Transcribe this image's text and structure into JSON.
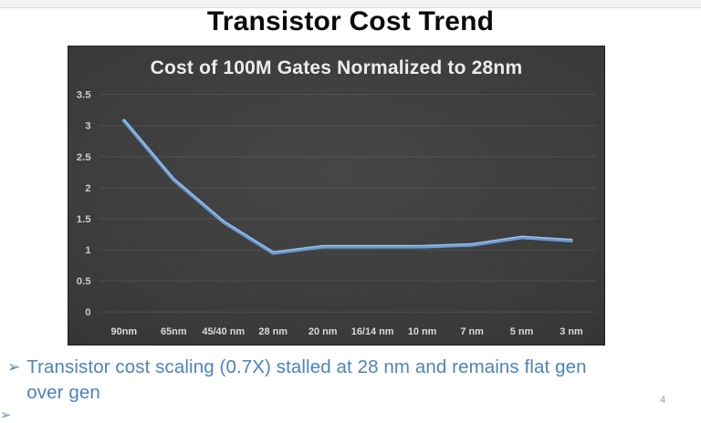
{
  "slide": {
    "title": "Transistor Cost Trend",
    "page_number": "4"
  },
  "chart_data": {
    "type": "line",
    "title": "Cost of 100M Gates Normalized to 28nm",
    "categories": [
      "90nm",
      "65nm",
      "45/40 nm",
      "28 nm",
      "20 nm",
      "16/14 nm",
      "10 nm",
      "7 nm",
      "5 nm",
      "3 nm"
    ],
    "values": [
      3.08,
      2.13,
      1.45,
      0.95,
      1.05,
      1.05,
      1.05,
      1.08,
      1.2,
      1.15
    ],
    "xlabel": "",
    "ylabel": "",
    "ylim": [
      0,
      3.5
    ],
    "ytick_labels": [
      "0",
      "0.5",
      "1",
      "1.5",
      "2",
      "2.5",
      "3",
      "3.5"
    ],
    "grid": true,
    "legend": "none",
    "line_color": "#6B9CD2",
    "background_color": "#3b3b3b",
    "gridline_color": "rgba(255,255,255,0.10)",
    "axis_label_color": "#cccccc"
  },
  "bullet": {
    "marker": "➢",
    "lines": [
      "Transistor cost scaling (0.7X) stalled at 28 nm and remains flat gen",
      "over gen"
    ],
    "full_text": "Transistor cost scaling (0.7X) stalled at 28 nm and remains flat gen over gen"
  },
  "partial_bullet": {
    "marker": "➢"
  },
  "colors": {
    "accent_blue": "#4d83bd",
    "line_blue": "#6B9CD2",
    "title_black": "#0b0b0b"
  }
}
